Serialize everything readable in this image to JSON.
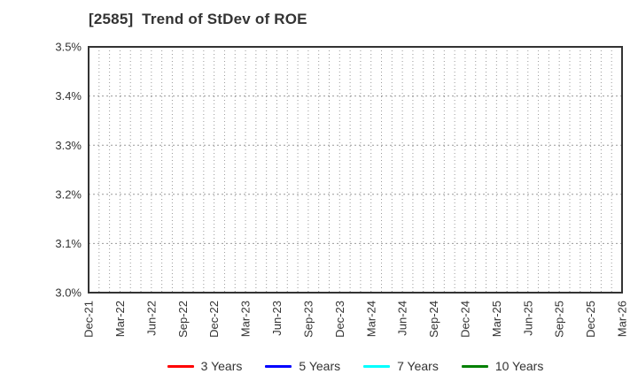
{
  "header": {
    "title": "[2585]  Trend of StDev of ROE"
  },
  "chart_data": {
    "type": "line",
    "title": "[2585]  Trend of StDev of ROE",
    "x_axis": {
      "categories": [
        "Dec-21",
        "Mar-22",
        "Jun-22",
        "Sep-22",
        "Dec-22",
        "Mar-23",
        "Jun-23",
        "Sep-23",
        "Dec-23",
        "Mar-24",
        "Jun-24",
        "Sep-24",
        "Dec-24",
        "Mar-25",
        "Jun-25",
        "Sep-25",
        "Dec-25",
        "Mar-26"
      ],
      "minor_gridlines_per_interval": 3,
      "tick_label_rotation_deg": -90
    },
    "y_axis": {
      "tick_labels": [
        "3.0%",
        "3.1%",
        "3.2%",
        "3.3%",
        "3.4%",
        "3.5%"
      ],
      "min": 3.0,
      "max": 3.5,
      "unit": "%"
    },
    "grid": true,
    "legend_position": "bottom",
    "series": [
      {
        "name": "3 Years",
        "color": "#ff0000",
        "values": []
      },
      {
        "name": "5 Years",
        "color": "#0000ff",
        "values": []
      },
      {
        "name": "7 Years",
        "color": "#00ffff",
        "values": []
      },
      {
        "name": "10 Years",
        "color": "#008000",
        "values": []
      }
    ]
  },
  "colors": {
    "background": "#ffffff",
    "axis_border": "#333333",
    "grid_major": "#999999",
    "grid_minor": "#999999",
    "text": "#333333"
  }
}
